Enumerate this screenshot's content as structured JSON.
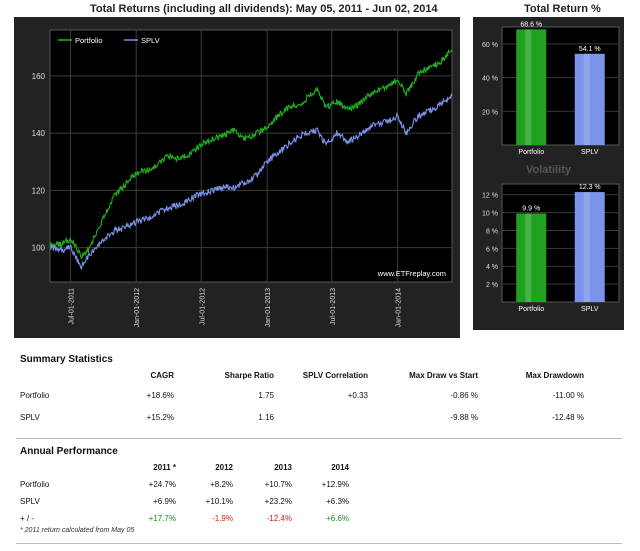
{
  "main_chart": {
    "title": "Total Returns (including all dividends): May 05, 2011 - Jun 02, 2014",
    "watermark": "www.ETFreplay.com",
    "chart_data": {
      "type": "line",
      "title": "Total Returns (including all dividends): May 05, 2011 - Jun 02, 2014",
      "xlabel": "",
      "ylabel": "",
      "xlim": [
        "2011-05-05",
        "2014-06-02"
      ],
      "ylim": [
        88,
        176
      ],
      "yticks": [
        100,
        120,
        140,
        160
      ],
      "xticks": [
        "Jul-01-2011",
        "Jan-01-2012",
        "Jul-01-2012",
        "Jan-01-2013",
        "Jul-01-2013",
        "Jan-01-2014"
      ],
      "grid": true,
      "legend": "top-left",
      "series": [
        {
          "name": "Portfolio",
          "color": "#1fb21f",
          "x": [
            "2011-05-05",
            "2011-06-01",
            "2011-07-01",
            "2011-08-01",
            "2011-08-20",
            "2011-09-15",
            "2011-10-05",
            "2011-11-01",
            "2011-12-01",
            "2012-01-01",
            "2012-02-01",
            "2012-03-01",
            "2012-04-01",
            "2012-05-01",
            "2012-06-01",
            "2012-07-01",
            "2012-08-01",
            "2012-09-01",
            "2012-10-01",
            "2012-11-01",
            "2012-12-01",
            "2013-01-01",
            "2013-02-01",
            "2013-03-01",
            "2013-04-01",
            "2013-05-20",
            "2013-06-15",
            "2013-07-15",
            "2013-08-15",
            "2013-09-15",
            "2013-10-01",
            "2013-11-01",
            "2013-12-01",
            "2014-01-01",
            "2014-01-25",
            "2014-02-15",
            "2014-03-01",
            "2014-04-01",
            "2014-05-01",
            "2014-06-02"
          ],
          "values": [
            101,
            101,
            103,
            97,
            99,
            106,
            111,
            118,
            122,
            126,
            127,
            129,
            132,
            131,
            133,
            136,
            138,
            139,
            141,
            138,
            140,
            142,
            146,
            149,
            150,
            155,
            149,
            151,
            148,
            150,
            152,
            155,
            156,
            159,
            154,
            158,
            161,
            163,
            165,
            169
          ]
        },
        {
          "name": "SPLV",
          "color": "#7b93e8",
          "x": [
            "2011-05-05",
            "2011-06-01",
            "2011-07-01",
            "2011-08-01",
            "2011-08-20",
            "2011-09-15",
            "2011-10-05",
            "2011-11-01",
            "2011-12-01",
            "2012-01-01",
            "2012-02-01",
            "2012-03-01",
            "2012-04-01",
            "2012-05-01",
            "2012-06-01",
            "2012-07-01",
            "2012-08-01",
            "2012-09-01",
            "2012-10-01",
            "2012-11-01",
            "2012-12-01",
            "2013-01-01",
            "2013-02-01",
            "2013-03-01",
            "2013-04-01",
            "2013-05-20",
            "2013-06-15",
            "2013-07-15",
            "2013-08-15",
            "2013-09-15",
            "2013-10-01",
            "2013-11-01",
            "2013-12-01",
            "2014-01-01",
            "2014-01-25",
            "2014-02-15",
            "2014-03-01",
            "2014-04-01",
            "2014-05-01",
            "2014-06-02"
          ],
          "values": [
            100,
            99,
            100,
            93,
            97,
            100,
            103,
            106,
            107,
            109,
            110,
            112,
            114,
            115,
            117,
            119,
            120,
            121,
            121,
            123,
            125,
            130,
            133,
            136,
            139,
            141,
            136,
            140,
            137,
            139,
            141,
            143,
            144,
            146,
            140,
            144,
            146,
            148,
            150,
            153
          ]
        }
      ]
    }
  },
  "total_return_chart": {
    "title": "Total Return %",
    "chart_data": {
      "type": "bar",
      "title": "Total Return %",
      "categories": [
        "Portfolio",
        "SPLV"
      ],
      "values": [
        68.6,
        54.1
      ],
      "value_labels": [
        "68.6 %",
        "54.1 %"
      ],
      "yticks": [
        "20 %",
        "40 %",
        "60 %"
      ],
      "ylim": [
        0,
        70
      ],
      "colors": [
        "#1fa21f",
        "#7b93e8"
      ]
    }
  },
  "volatility_chart": {
    "title": "Volatility",
    "chart_data": {
      "type": "bar",
      "title": "Volatility",
      "categories": [
        "Portfolio",
        "SPLV"
      ],
      "values": [
        9.9,
        12.3
      ],
      "value_labels": [
        "9.9 %",
        "12.3 %"
      ],
      "yticks": [
        "2 %",
        "4 %",
        "6 %",
        "8 %",
        "10 %",
        "12 %"
      ],
      "ylim": [
        0,
        13.2
      ],
      "colors": [
        "#1fa21f",
        "#7b93e8"
      ]
    }
  },
  "summary": {
    "title": "Summary Statistics",
    "headers": [
      "CAGR",
      "Sharpe Ratio",
      "SPLV Correlation",
      "Max Draw vs Start",
      "Max Drawdown"
    ],
    "rows": [
      {
        "name": "Portfolio",
        "cagr": "+18.6%",
        "sharpe": "1.75",
        "corr": "+0.33",
        "maxdraw_start": "-0.86 %",
        "maxdrawdown": "-11.00 %"
      },
      {
        "name": "SPLV",
        "cagr": "+15.2%",
        "sharpe": "1.16",
        "corr": "",
        "maxdraw_start": "-9.88 %",
        "maxdrawdown": "-12.48 %"
      }
    ]
  },
  "annual": {
    "title": "Annual Performance",
    "headers": [
      "2011 *",
      "2012",
      "2013",
      "2014"
    ],
    "rows": [
      {
        "name": "Portfolio",
        "values": [
          "+24.7%",
          "+8.2%",
          "+10.7%",
          "+12.9%"
        ]
      },
      {
        "name": "SPLV",
        "values": [
          "+6.9%",
          "+10.1%",
          "+23.2%",
          "+6.3%"
        ]
      },
      {
        "name": "+ / -",
        "values": [
          "+17.7%",
          "-1.9%",
          "-12.4%",
          "+6.6%"
        ]
      }
    ],
    "footnote": "* 2011 return calculated from May 05"
  }
}
